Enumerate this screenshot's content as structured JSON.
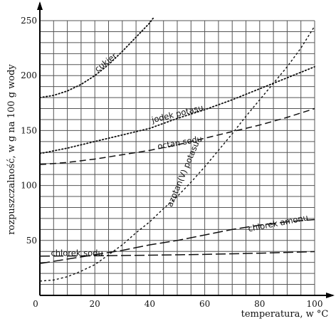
{
  "chart_data": {
    "type": "line",
    "xlabel": "temperatura, w °C",
    "ylabel": "rozpuszczalność, w g na 100 g wody",
    "xlim": [
      0,
      100
    ],
    "ylim": [
      0,
      250
    ],
    "xticks": [
      0,
      20,
      40,
      60,
      80,
      100
    ],
    "yticks": [
      50,
      100,
      150,
      200,
      250
    ],
    "x_minor_step": 5,
    "y_minor_step": 10,
    "grid": true,
    "series": [
      {
        "name": "cukier",
        "style": "dotted",
        "x": [
          0,
          5,
          10,
          15,
          20,
          25,
          30,
          35,
          40,
          42
        ],
        "y": [
          180,
          182,
          186,
          192,
          200,
          210,
          222,
          235,
          248,
          255
        ]
      },
      {
        "name": "jodek potasu",
        "style": "dotted",
        "x": [
          0,
          10,
          20,
          30,
          40,
          50,
          60,
          70,
          80,
          90,
          100
        ],
        "y": [
          129,
          134,
          140,
          146,
          152,
          161,
          169,
          178,
          188,
          198,
          208
        ]
      },
      {
        "name": "octan sodu",
        "style": "dashed",
        "x": [
          0,
          10,
          20,
          30,
          40,
          50,
          60,
          70,
          80,
          90,
          100
        ],
        "y": [
          119,
          121,
          124,
          128,
          132,
          137,
          143,
          149,
          155,
          162,
          170
        ]
      },
      {
        "name": "azotan(V) potasu",
        "style": "short-dashed",
        "x": [
          0,
          5,
          10,
          15,
          20,
          25,
          30,
          35,
          40,
          45,
          50,
          55,
          60,
          65,
          70,
          75,
          80,
          85,
          90,
          95,
          100
        ],
        "y": [
          13,
          14,
          17,
          22,
          28,
          37,
          46,
          57,
          67,
          79,
          90,
          103,
          117,
          132,
          147,
          163,
          178,
          193,
          208,
          225,
          245
        ]
      },
      {
        "name": "chlorek amonu",
        "style": "long-dashed",
        "x": [
          0,
          10,
          20,
          30,
          40,
          50,
          60,
          70,
          80,
          90,
          100
        ],
        "y": [
          29,
          33,
          37,
          41,
          46,
          50,
          55,
          60,
          64,
          67,
          69
        ]
      },
      {
        "name": "chlorek sodu",
        "style": "long-dashed",
        "x": [
          0,
          20,
          40,
          60,
          80,
          100
        ],
        "y": [
          35.7,
          36.0,
          36.6,
          37.3,
          38.4,
          39.8
        ]
      }
    ],
    "annotations": [
      {
        "text": "cukier",
        "x": 21,
        "y": 203,
        "angle": -38
      },
      {
        "text": "jodek potasu",
        "x": 41,
        "y": 157,
        "angle": -14
      },
      {
        "text": "octan sodu",
        "x": 43,
        "y": 133,
        "angle": -10
      },
      {
        "text": "azotan(V) potasu",
        "x": 48,
        "y": 80,
        "angle": -67
      },
      {
        "text": "chlorek amonu",
        "x": 76,
        "y": 58,
        "angle": -11
      },
      {
        "text": "chlorek sodu",
        "x": 4,
        "y": 36,
        "angle": 0
      }
    ]
  }
}
